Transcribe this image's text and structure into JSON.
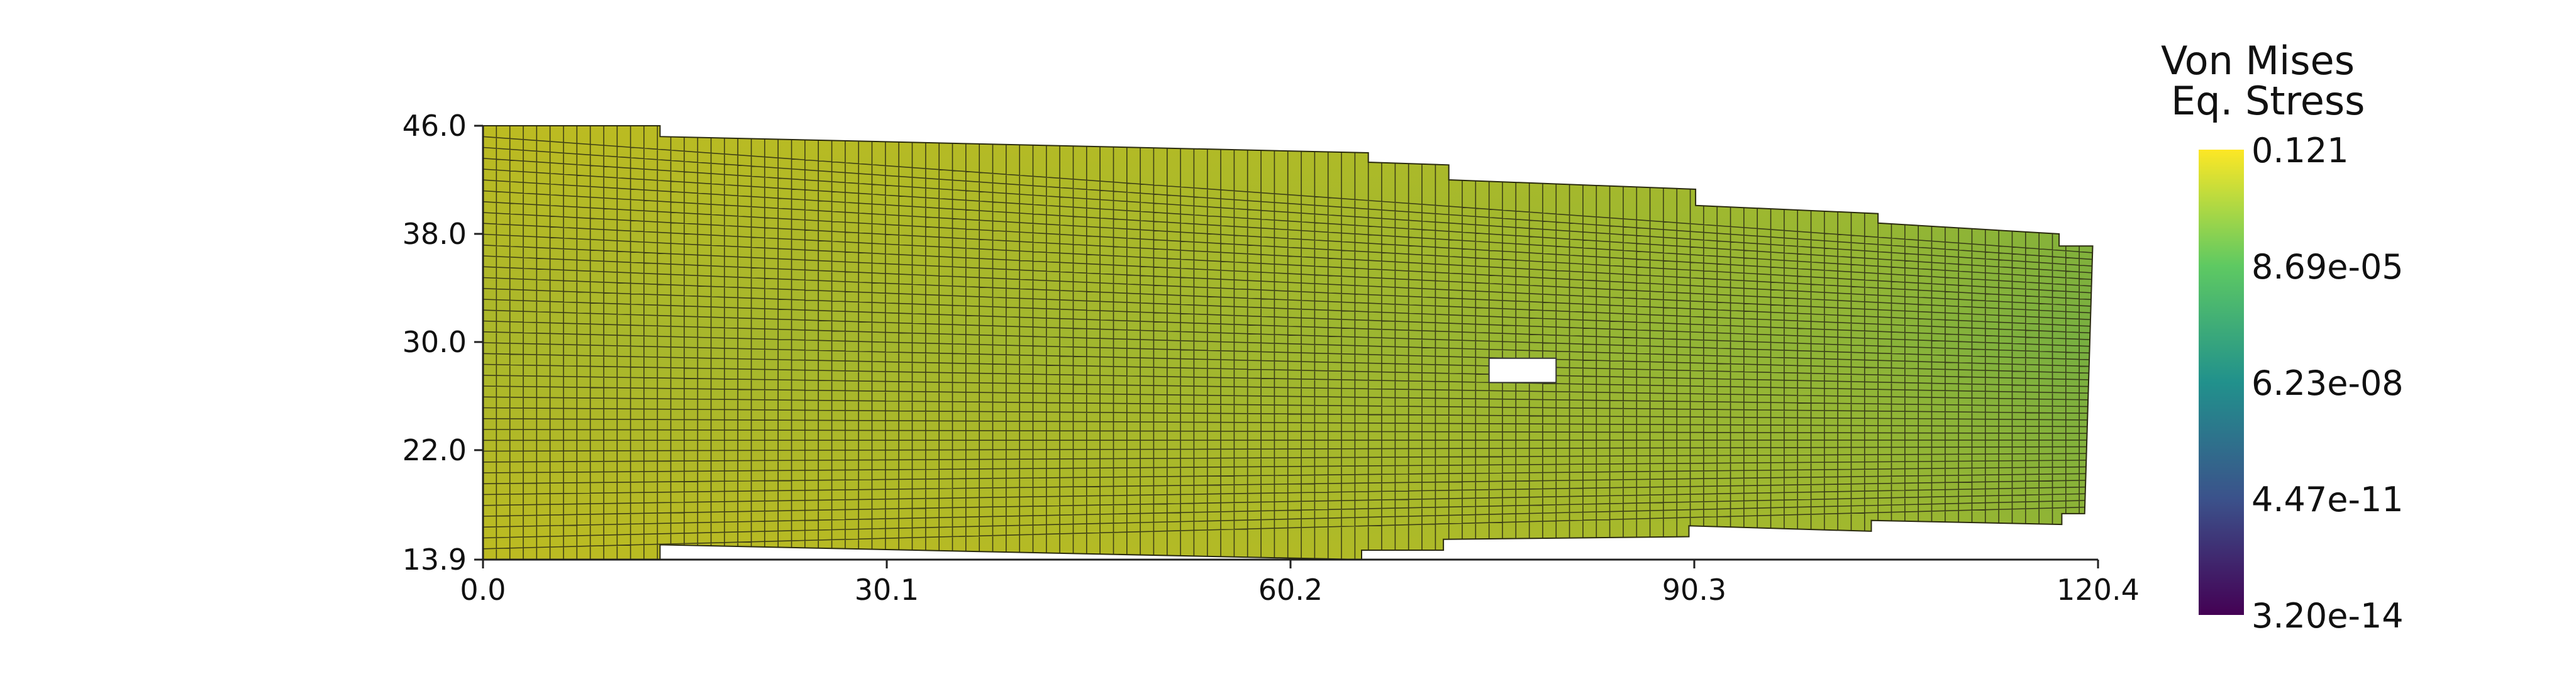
{
  "chart_data": {
    "type": "heatmap",
    "description_free": true,
    "x_axis": {
      "range": [
        0.0,
        120.4
      ],
      "ticks": [
        "0.0",
        "30.1",
        "60.2",
        "90.3",
        "120.4"
      ],
      "tick_values": [
        0.0,
        30.1,
        60.2,
        90.3,
        120.4
      ]
    },
    "y_axis": {
      "range": [
        13.9,
        46.0
      ],
      "ticks": [
        "13.9",
        "22.0",
        "30.0",
        "38.0",
        "46.0"
      ],
      "tick_values": [
        13.9,
        22.0,
        30.0,
        38.0,
        46.0
      ]
    },
    "colorbar": {
      "title_lines": [
        "Von Mises",
        "Eq. Stress"
      ],
      "labels": [
        "0.121",
        "8.69e-05",
        "6.23e-08",
        "4.47e-11",
        "3.20e-14"
      ],
      "colormap_stops": [
        "#fde725",
        "#5ec962",
        "#21918c",
        "#3b528b",
        "#440154"
      ],
      "scale": "log"
    },
    "mesh": {
      "outline": [
        [
          0.0,
          46.0
        ],
        [
          13.2,
          46.0
        ],
        [
          13.2,
          45.2
        ],
        [
          66.0,
          44.0
        ],
        [
          66.0,
          43.3
        ],
        [
          72.0,
          43.1
        ],
        [
          72.0,
          42.0
        ],
        [
          90.4,
          41.3
        ],
        [
          90.4,
          40.1
        ],
        [
          104.0,
          39.5
        ],
        [
          104.0,
          38.8
        ],
        [
          117.5,
          38.0
        ],
        [
          117.5,
          37.1
        ],
        [
          120.0,
          37.1
        ],
        [
          119.4,
          17.3
        ],
        [
          117.7,
          17.3
        ],
        [
          117.7,
          16.5
        ],
        [
          103.5,
          16.8
        ],
        [
          103.5,
          16.0
        ],
        [
          89.9,
          16.4
        ],
        [
          89.9,
          15.6
        ],
        [
          71.6,
          15.4
        ],
        [
          71.6,
          14.6
        ],
        [
          65.5,
          14.6
        ],
        [
          65.5,
          13.9
        ],
        [
          13.2,
          15.0
        ],
        [
          13.2,
          13.9
        ],
        [
          0.0,
          13.9
        ]
      ],
      "hole": [
        [
          75.0,
          28.8
        ],
        [
          80.0,
          28.8
        ],
        [
          80.0,
          27.0
        ],
        [
          75.0,
          27.0
        ]
      ],
      "grid_columns": 120,
      "grid_rows": 40,
      "field_colors": {
        "high": "#bcbc1c",
        "mid": "#a3ba2a",
        "low": "#86b53a",
        "tip": "#5fa84a",
        "edge_right": "#c6bb20"
      }
    }
  }
}
